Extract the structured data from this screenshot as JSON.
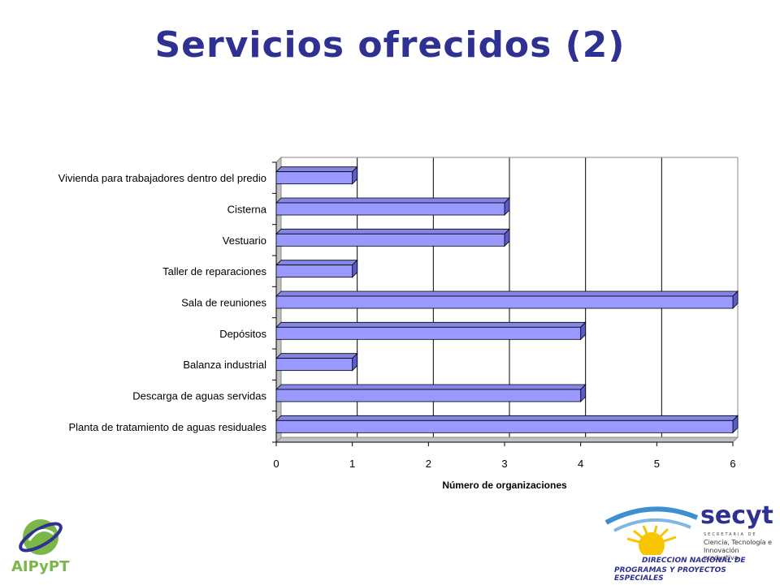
{
  "title": "Servicios ofrecidos (2)",
  "colors": {
    "title": "#2e3192",
    "bar": "#9999ff",
    "bar_top": "#8585e6",
    "bar_side": "#5c5ccc"
  },
  "chart_data": {
    "type": "bar",
    "orientation": "horizontal",
    "style": "3d",
    "categories": [
      "Vivienda para trabajadores dentro del predio",
      "Cisterna",
      "Vestuario",
      "Taller de reparaciones",
      "Sala de reuniones",
      "Depósitos",
      "Balanza industrial",
      "Descarga de aguas servidas",
      "Planta de tratamiento de aguas residuales"
    ],
    "values": [
      1,
      3,
      3,
      1,
      6,
      4,
      1,
      4,
      6
    ],
    "xlabel": "Número de organizaciones",
    "ylabel": "",
    "xlim": [
      0,
      6
    ],
    "xticks": [
      0,
      1,
      2,
      3,
      4,
      5,
      6
    ],
    "grid": true
  },
  "logos": {
    "left": {
      "text": "AIPyPT"
    },
    "right": {
      "brand": "secyt",
      "tagline": "SECRETARIA DE",
      "line1": "Ciencia, Tecnología e",
      "line2": "Innovación productiva",
      "dept1": "DIRECCION NACIONAL DE",
      "dept2": "PROGRAMAS Y PROYECTOS ESPECIALES"
    }
  }
}
